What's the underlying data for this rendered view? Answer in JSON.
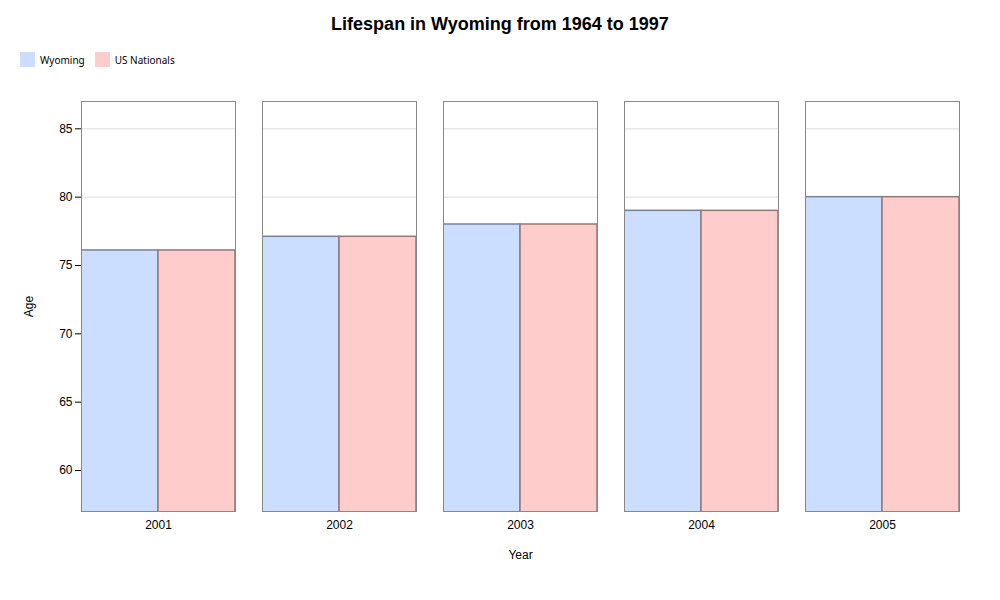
{
  "chart_data": {
    "type": "bar",
    "title": "Lifespan in Wyoming from 1964 to 1997",
    "xlabel": "Year",
    "ylabel": "Age",
    "categories": [
      "2001",
      "2002",
      "2003",
      "2004",
      "2005"
    ],
    "series": [
      {
        "name": "Wyoming",
        "color": "#ccdeff",
        "values": [
          76.1,
          77.1,
          78.0,
          79.0,
          80.0
        ]
      },
      {
        "name": "US Nationals",
        "color": "#ffcccc",
        "values": [
          76.1,
          77.1,
          78.0,
          79.0,
          80.0
        ]
      }
    ],
    "ylim": [
      57,
      87
    ],
    "yticks": [
      60,
      65,
      70,
      75,
      80,
      85
    ],
    "grid": true,
    "legend": "top"
  }
}
